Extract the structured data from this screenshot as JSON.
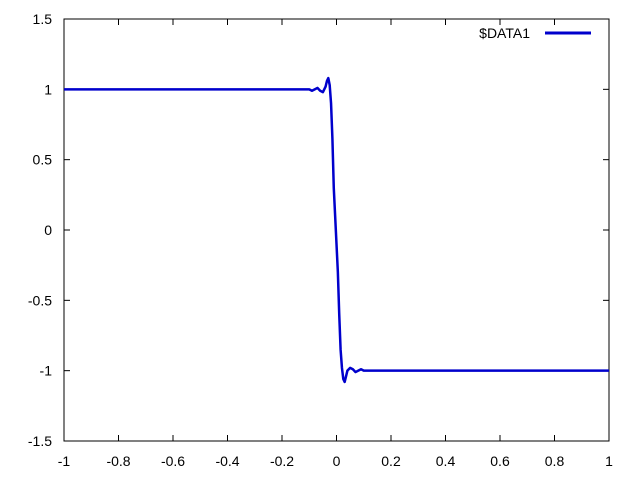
{
  "chart_data": {
    "type": "line",
    "xlim": [
      -1,
      1
    ],
    "ylim": [
      -1.5,
      1.5
    ],
    "x_ticks": [
      -1,
      -0.8,
      -0.6,
      -0.4,
      -0.2,
      0,
      0.2,
      0.4,
      0.6,
      0.8,
      1
    ],
    "x_tick_labels": [
      "-1",
      "-0.8",
      "-0.6",
      "-0.4",
      "-0.2",
      "0",
      "0.2",
      "0.4",
      "0.6",
      "0.8",
      "1"
    ],
    "y_ticks": [
      -1.5,
      -1,
      -0.5,
      0,
      0.5,
      1,
      1.5
    ],
    "y_tick_labels": [
      "-1.5",
      "-1",
      "-0.5",
      "0",
      "0.5",
      "1",
      "1.5"
    ],
    "grid": false,
    "legend_position": "top-right",
    "series": [
      {
        "name": "$DATA1",
        "color": "#0000cc",
        "x": [
          -1,
          -0.2,
          -0.1,
          -0.09,
          -0.08,
          -0.07,
          -0.06,
          -0.05,
          -0.04,
          -0.035,
          -0.03,
          -0.025,
          -0.02,
          -0.015,
          -0.01,
          -0.005,
          0,
          0.005,
          0.01,
          0.015,
          0.02,
          0.025,
          0.03,
          0.035,
          0.04,
          0.05,
          0.06,
          0.07,
          0.08,
          0.09,
          0.1,
          0.2,
          1
        ],
        "y": [
          1,
          1,
          1,
          0.99,
          1.0,
          1.01,
          0.99,
          0.98,
          1.02,
          1.06,
          1.08,
          1.03,
          0.9,
          0.65,
          0.3,
          0.1,
          -0.1,
          -0.3,
          -0.6,
          -0.85,
          -0.98,
          -1.06,
          -1.08,
          -1.04,
          -1.0,
          -0.98,
          -0.99,
          -1.01,
          -1.0,
          -0.99,
          -1,
          -1,
          -1
        ]
      }
    ]
  }
}
